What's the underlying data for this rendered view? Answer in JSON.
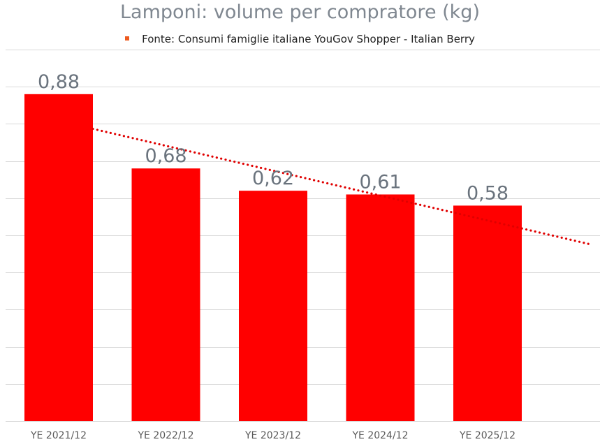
{
  "chart_data": {
    "type": "bar",
    "title": "Lamponi: volume per compratore (kg)",
    "legend": {
      "label": "Fonte: Consumi famiglie italiane YouGov Shopper - Italian Berry",
      "placement": "top-center",
      "marker_color": "#ed5a1f"
    },
    "categories": [
      "YE 2021/12",
      "YE 2022/12",
      "YE 2023/12",
      "YE 2024/12",
      "YE 2025/12"
    ],
    "values": [
      0.88,
      0.68,
      0.62,
      0.61,
      0.58
    ],
    "data_labels": [
      "0,88",
      "0,68",
      "0,62",
      "0,61",
      "0,58"
    ],
    "xlabel": "",
    "ylabel": "",
    "ylim": [
      0,
      1.0
    ],
    "grid": true,
    "trendline": {
      "type": "linear",
      "style": "dotted",
      "color": "#e00000",
      "extends_beyond_last_category": true
    },
    "colors": {
      "bar": "#ff0000",
      "grid": "#d9d9d9",
      "data_label": "#6a737d",
      "tick_label": "#595959",
      "title": "#7f8790"
    }
  }
}
